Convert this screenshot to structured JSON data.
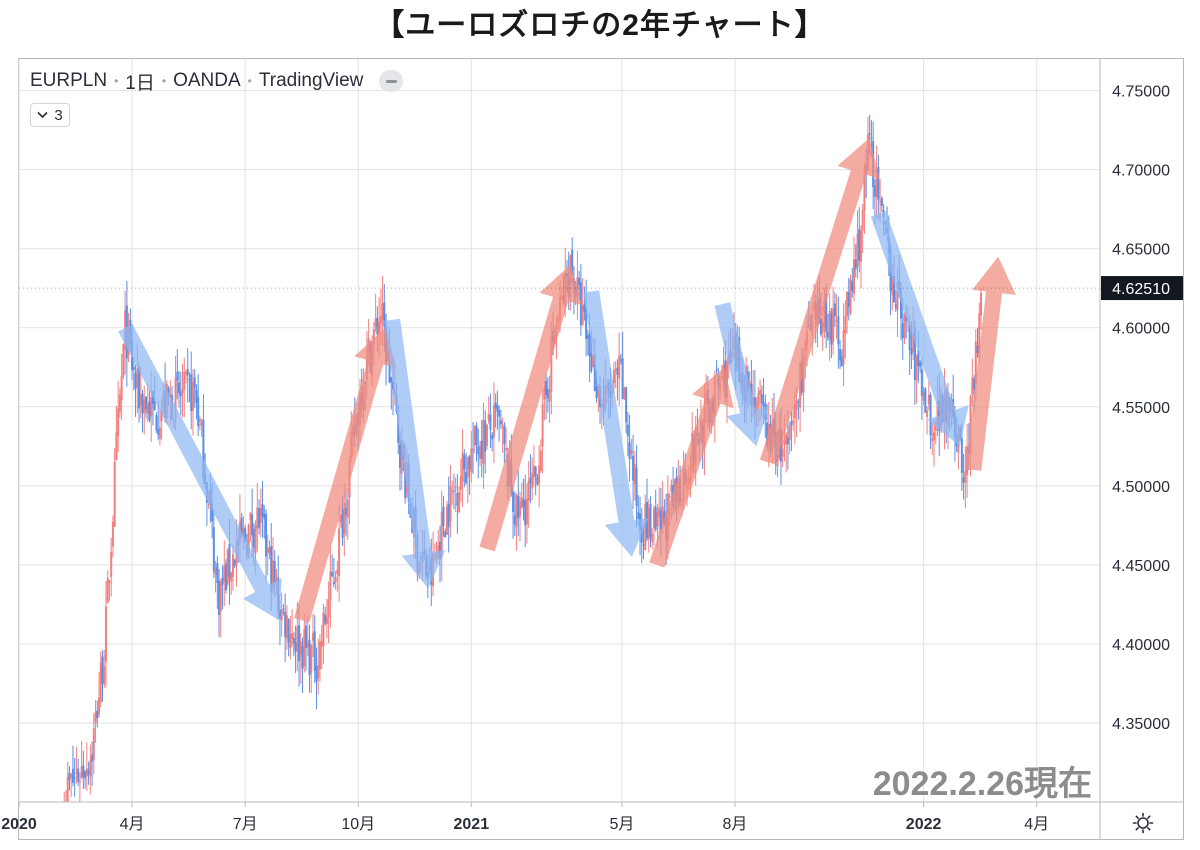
{
  "title": "【ユーロズロチの2年チャート】",
  "legend": {
    "symbol": "EURPLN",
    "interval": "1日",
    "source": "OANDA",
    "platform": "TradingView"
  },
  "indicator_toggle": {
    "label": "3"
  },
  "date_stamp": "2022.2.26現在",
  "current_price": "4.62510",
  "colors": {
    "up_candle": "#f08080",
    "down_candle": "#5b8ee6",
    "up_arrow": "#f08c7e",
    "down_arrow": "#8fb8f2",
    "price_badge_bg": "#131722",
    "grid": "#e2e2e2",
    "axis_text": "#2a2e39"
  },
  "chart_data": {
    "type": "candlestick",
    "title": "【ユーロズロチの2年チャート】",
    "symbol": "EURPLN",
    "ylim": [
      4.3,
      4.77
    ],
    "y_ticks": [
      4.35,
      4.4,
      4.45,
      4.5,
      4.55,
      4.6,
      4.65,
      4.7,
      4.75
    ],
    "y_tick_labels": [
      "4.35000",
      "4.40000",
      "4.45000",
      "4.50000",
      "4.55000",
      "4.60000",
      "4.65000",
      "4.70000",
      "4.75000"
    ],
    "x_start": 2020.0,
    "x_end": 2022.39,
    "x_ticks": [
      {
        "x": 2020.0,
        "label": "2020",
        "bold": true
      },
      {
        "x": 2020.25,
        "label": "4月",
        "bold": false
      },
      {
        "x": 2020.5,
        "label": "7月",
        "bold": false
      },
      {
        "x": 2020.75,
        "label": "10月",
        "bold": false
      },
      {
        "x": 2021.0,
        "label": "2021",
        "bold": true
      },
      {
        "x": 2021.333,
        "label": "5月",
        "bold": false
      },
      {
        "x": 2021.583,
        "label": "8月",
        "bold": false
      },
      {
        "x": 2022.0,
        "label": "2022",
        "bold": true
      },
      {
        "x": 2022.25,
        "label": "4月",
        "bold": false
      }
    ],
    "price_path": [
      [
        2020.1,
        4.305
      ],
      [
        2020.16,
        4.33
      ],
      [
        2020.19,
        4.4
      ],
      [
        2020.215,
        4.52
      ],
      [
        2020.235,
        4.6
      ],
      [
        2020.26,
        4.56
      ],
      [
        2020.3,
        4.545
      ],
      [
        2020.34,
        4.555
      ],
      [
        2020.39,
        4.56
      ],
      [
        2020.42,
        4.49
      ],
      [
        2020.44,
        4.43
      ],
      [
        2020.48,
        4.46
      ],
      [
        2020.53,
        4.48
      ],
      [
        2020.58,
        4.42
      ],
      [
        2020.62,
        4.4
      ],
      [
        2020.66,
        4.39
      ],
      [
        2020.7,
        4.45
      ],
      [
        2020.73,
        4.51
      ],
      [
        2020.76,
        4.57
      ],
      [
        2020.8,
        4.61
      ],
      [
        2020.84,
        4.53
      ],
      [
        2020.88,
        4.46
      ],
      [
        2020.91,
        4.44
      ],
      [
        2020.94,
        4.48
      ],
      [
        2020.98,
        4.51
      ],
      [
        2021.02,
        4.53
      ],
      [
        2021.06,
        4.54
      ],
      [
        2021.1,
        4.48
      ],
      [
        2021.14,
        4.5
      ],
      [
        2021.18,
        4.59
      ],
      [
        2021.22,
        4.64
      ],
      [
        2021.25,
        4.6
      ],
      [
        2021.29,
        4.55
      ],
      [
        2021.33,
        4.57
      ],
      [
        2021.37,
        4.48
      ],
      [
        2021.41,
        4.47
      ],
      [
        2021.45,
        4.49
      ],
      [
        2021.5,
        4.53
      ],
      [
        2021.54,
        4.56
      ],
      [
        2021.58,
        4.58
      ],
      [
        2021.62,
        4.56
      ],
      [
        2021.66,
        4.53
      ],
      [
        2021.7,
        4.52
      ],
      [
        2021.74,
        4.59
      ],
      [
        2021.78,
        4.61
      ],
      [
        2021.82,
        4.59
      ],
      [
        2021.86,
        4.66
      ],
      [
        2021.88,
        4.72
      ],
      [
        2021.91,
        4.66
      ],
      [
        2021.94,
        4.62
      ],
      [
        2021.98,
        4.58
      ],
      [
        2022.02,
        4.54
      ],
      [
        2022.06,
        4.56
      ],
      [
        2022.09,
        4.5
      ],
      [
        2022.13,
        4.625
      ]
    ],
    "trend_arrows": [
      {
        "direction": "down",
        "from": [
          2020.235,
          4.6
        ],
        "to": [
          2020.575,
          4.415
        ]
      },
      {
        "direction": "up",
        "from": [
          2020.625,
          4.415
        ],
        "to": [
          2020.81,
          4.6
        ]
      },
      {
        "direction": "down",
        "from": [
          2020.825,
          4.605
        ],
        "to": [
          2020.905,
          4.435
        ]
      },
      {
        "direction": "up",
        "from": [
          2021.035,
          4.46
        ],
        "to": [
          2021.22,
          4.64
        ]
      },
      {
        "direction": "down",
        "from": [
          2021.265,
          4.623
        ],
        "to": [
          2021.355,
          4.455
        ]
      },
      {
        "direction": "up",
        "from": [
          2021.41,
          4.45
        ],
        "to": [
          2021.56,
          4.575
        ]
      },
      {
        "direction": "down",
        "from": [
          2021.555,
          4.615
        ],
        "to": [
          2021.63,
          4.525
        ]
      },
      {
        "direction": "up",
        "from": [
          2021.655,
          4.515
        ],
        "to": [
          2021.88,
          4.72
        ]
      },
      {
        "direction": "down",
        "from": [
          2021.9,
          4.672
        ],
        "to": [
          2022.08,
          4.525
        ]
      },
      {
        "direction": "up",
        "from": [
          2022.11,
          4.51
        ],
        "to": [
          2022.165,
          4.645
        ]
      }
    ]
  }
}
